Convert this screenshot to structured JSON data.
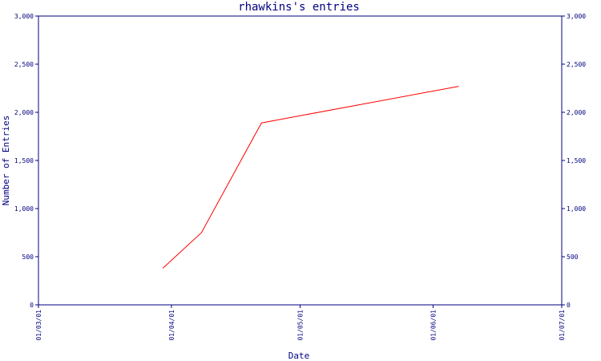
{
  "colors": {
    "axis": "#000080",
    "series_line": "#ff0000",
    "background": "#ffffff"
  },
  "chart_data": {
    "type": "line",
    "title": "rhawkins's entries",
    "xlabel": "Date",
    "ylabel": "Number of Entries",
    "x_tick_labels": [
      "01/03/01",
      "01/04/01",
      "01/05/01",
      "01/06/01",
      "01/07/01"
    ],
    "y_ticks": [
      0,
      500,
      1000,
      1500,
      2000,
      2500,
      3000
    ],
    "y_tick_labels": [
      "0",
      "500",
      "1,000",
      "1,500",
      "2,000",
      "2,500",
      "3,000"
    ],
    "y_tick_labels_right": [
      "0",
      "500",
      "1,000",
      "1,500",
      "2,000",
      "2,500",
      "3,000"
    ],
    "ylim": [
      0,
      3000
    ],
    "xlim": [
      "2001-03-01",
      "2001-07-01"
    ],
    "grid": false,
    "series": [
      {
        "x": [
          "2001-03-30",
          "2001-04-08",
          "2001-04-22",
          "2001-06-07"
        ],
        "y": [
          380,
          750,
          1890,
          2270
        ]
      }
    ]
  }
}
